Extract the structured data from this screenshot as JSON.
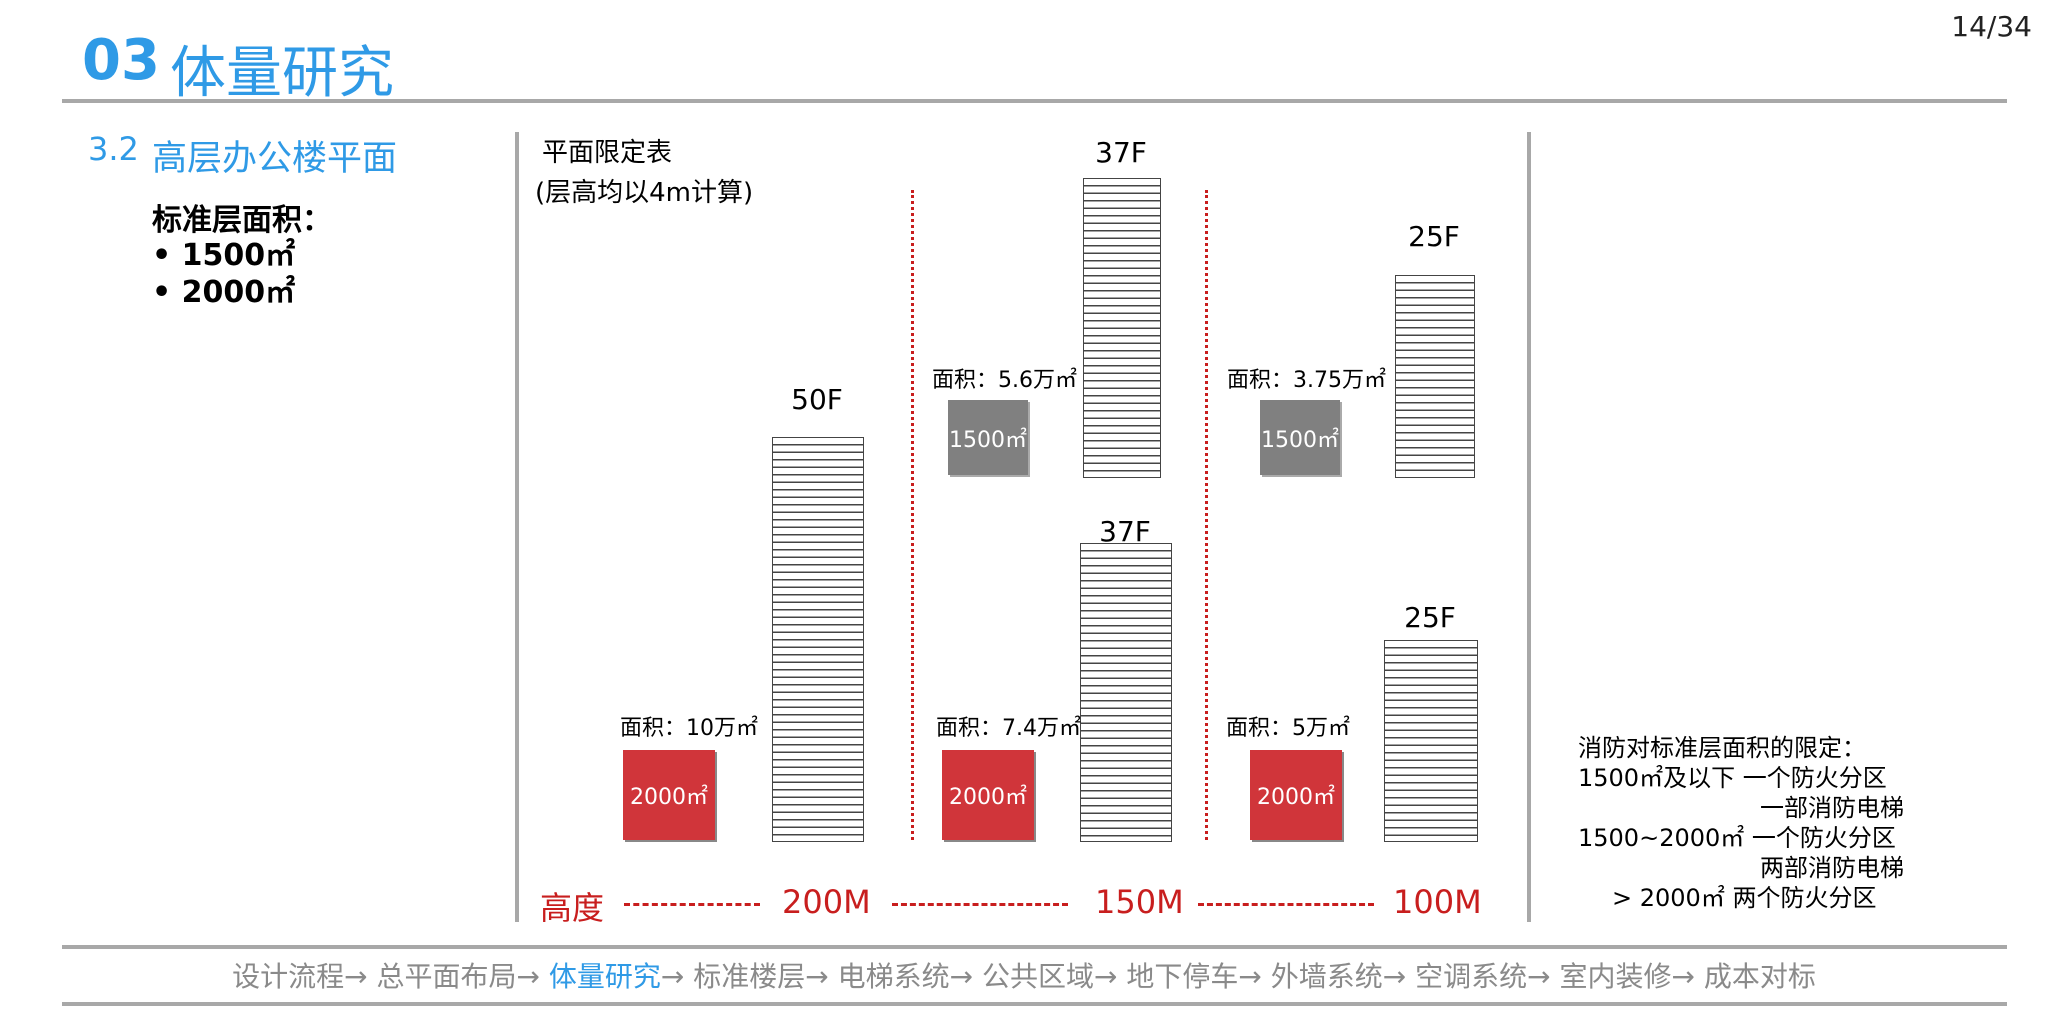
{
  "header": {
    "number": "03",
    "title": "体量研究",
    "page": "14/34"
  },
  "section": {
    "number": "3.2",
    "title": "高层办公楼平面",
    "std_label": "标准层面积：",
    "std_items": [
      "• 1500㎡",
      "• 2000㎡"
    ]
  },
  "table": {
    "title": "平面限定表",
    "note": "(层高均以4m计算)"
  },
  "columns": [
    {
      "height": "200M",
      "towers": [
        {
          "floors": "50F",
          "area": "面积：10万㎡",
          "plate": "2000㎡",
          "plate_color": "#d0353a"
        }
      ]
    },
    {
      "height": "150M",
      "towers": [
        {
          "floors": "37F",
          "area": "面积：5.6万㎡",
          "plate": "1500㎡",
          "plate_color": "#808080"
        },
        {
          "floors": "37F",
          "area": "面积：7.4万㎡",
          "plate": "2000㎡",
          "plate_color": "#d0353a"
        }
      ]
    },
    {
      "height": "100M",
      "towers": [
        {
          "floors": "25F",
          "area": "面积：3.75万㎡",
          "plate": "1500㎡",
          "plate_color": "#808080"
        },
        {
          "floors": "25F",
          "area": "面积：5万㎡",
          "plate": "2000㎡",
          "plate_color": "#d0353a"
        }
      ]
    }
  ],
  "height_label": "高度",
  "fire": {
    "title": "消防对标准层面积的限定：",
    "rows": [
      "1500㎡及以下   一个防火分区",
      "一部消防电梯",
      "1500~2000㎡  一个防火分区",
      "两部消防电梯",
      "> 2000㎡      两个防火分区"
    ]
  },
  "footer": {
    "before": "设计流程→ 总平面布局→ ",
    "active": "体量研究",
    "after": "→ 标准楼层→ 电梯系统→ 公共区域→ 地下停车→ 外墙系统→ 空调系统→ 室内装修→ 成本对标"
  }
}
